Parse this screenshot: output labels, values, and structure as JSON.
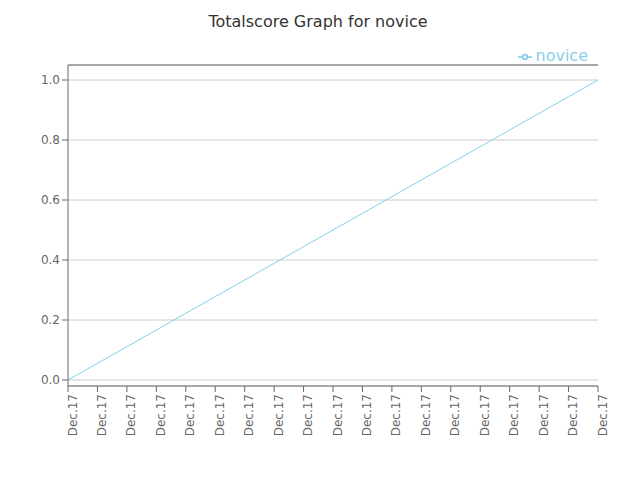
{
  "chart_data": {
    "type": "line",
    "title": "Totalscore Graph for novice",
    "categories": [
      "Dec.17",
      "Dec.17",
      "Dec.17",
      "Dec.17",
      "Dec.17",
      "Dec.17",
      "Dec.17",
      "Dec.17",
      "Dec.17",
      "Dec.17",
      "Dec.17",
      "Dec.17",
      "Dec.17",
      "Dec.17",
      "Dec.17",
      "Dec.17",
      "Dec.17",
      "Dec.17",
      "Dec.17"
    ],
    "series": [
      {
        "name": "novice",
        "color": "#87CEEB",
        "values": [
          0.0,
          0.05556,
          0.11111,
          0.16667,
          0.22222,
          0.27778,
          0.33333,
          0.38889,
          0.44444,
          0.5,
          0.55556,
          0.61111,
          0.66667,
          0.72222,
          0.77778,
          0.83333,
          0.88889,
          0.94444,
          1.0
        ]
      }
    ],
    "ylim": [
      -0.02,
      1.05
    ],
    "yticks": [
      {
        "value": 0,
        "label": "0.0"
      },
      0.2,
      0.4,
      0.6,
      0.8,
      {
        "value": 1,
        "label": "1.0"
      }
    ],
    "grid": true,
    "legend": "upper right"
  }
}
